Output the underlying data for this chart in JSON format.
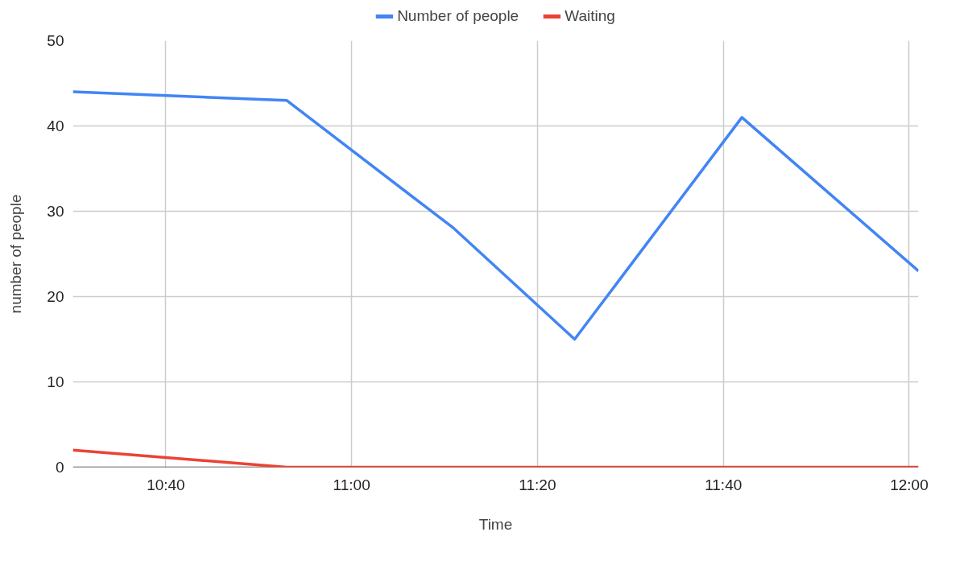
{
  "chart_data": {
    "type": "line",
    "xlabel": "Time",
    "ylabel": "number of people",
    "x": [
      10.5,
      10.8833,
      11.1833,
      11.4,
      11.7,
      12.0167
    ],
    "xlim": [
      10.5,
      12.0167
    ],
    "xticks": [
      {
        "value": 10.6667,
        "label": "10:40"
      },
      {
        "value": 11.0,
        "label": "11:00"
      },
      {
        "value": 11.3333,
        "label": "11:20"
      },
      {
        "value": 11.6667,
        "label": "11:40"
      },
      {
        "value": 12.0,
        "label": "12:00"
      }
    ],
    "ylim": [
      0,
      50
    ],
    "yticks": [
      0,
      10,
      20,
      30,
      40,
      50
    ],
    "series": [
      {
        "name": "Number of people",
        "color": "#4285f4",
        "values": [
          44,
          43,
          28,
          15,
          41,
          23
        ]
      },
      {
        "name": "Waiting",
        "color": "#ea4335",
        "values": [
          2,
          0,
          0,
          0,
          0,
          0
        ]
      }
    ],
    "grid": true,
    "legend": "top",
    "marker": "none",
    "line_style": "solid"
  }
}
